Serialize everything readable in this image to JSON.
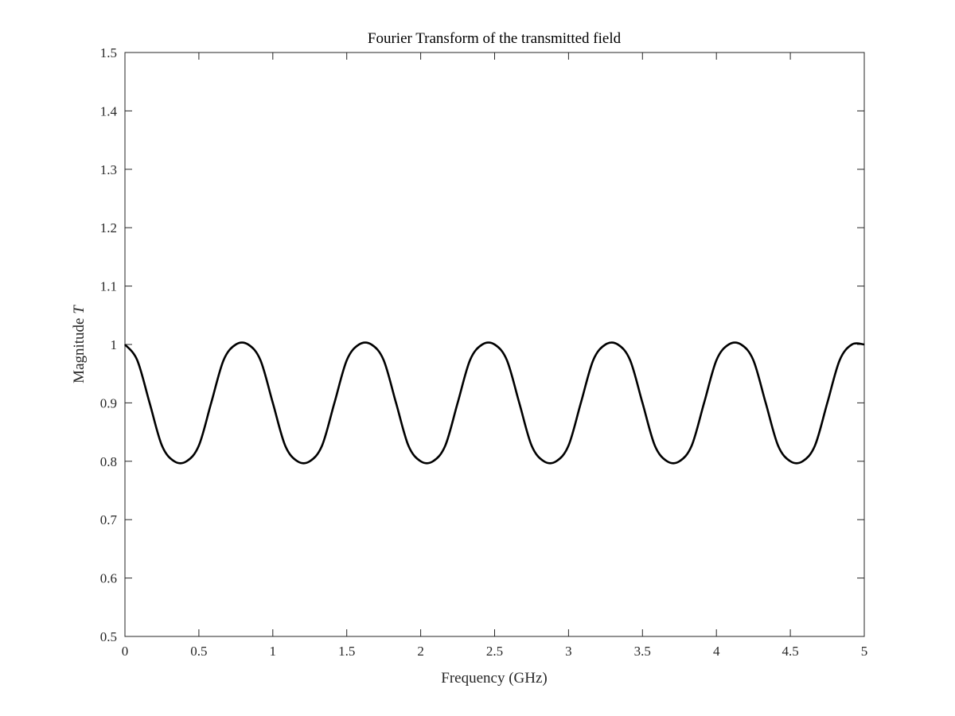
{
  "chart_data": {
    "type": "line",
    "title": "Fourier Transform of the transmitted field",
    "xlabel": "Frequency (GHz)",
    "ylabel_text": "Magnitude ",
    "ylabel_symbol": "T",
    "xlim": [
      0,
      5
    ],
    "ylim": [
      0.5,
      1.5
    ],
    "xticks": [
      "0",
      "0.5",
      "1",
      "1.5",
      "2",
      "2.5",
      "3",
      "3.5",
      "4",
      "4.5",
      "5"
    ],
    "yticks": [
      "0.5",
      "0.6",
      "0.7",
      "0.8",
      "0.9",
      "1",
      "1.1",
      "1.2",
      "1.3",
      "1.4",
      "1.5"
    ],
    "grid": false,
    "legend": "none",
    "series": [
      {
        "color": "#000000",
        "x": [
          0,
          0.0833,
          0.1667,
          0.25,
          0.3333,
          0.4167,
          0.5,
          0.5833,
          0.6667,
          0.75,
          0.8333,
          0.9167,
          1.0,
          1.0833,
          1.1667,
          1.25,
          1.3333,
          1.4167,
          1.5,
          1.5833,
          1.6667,
          1.75,
          1.8333,
          1.9167,
          2.0,
          2.0833,
          2.1667,
          2.25,
          2.3333,
          2.4167,
          2.5,
          2.5833,
          2.6667,
          2.75,
          2.8333,
          2.9167,
          3.0,
          3.0833,
          3.1667,
          3.25,
          3.3333,
          3.4167,
          3.5,
          3.5833,
          3.6667,
          3.75,
          3.8333,
          3.9167,
          4.0,
          4.0833,
          4.1667,
          4.25,
          4.3333,
          4.4167,
          4.5,
          4.5833,
          4.6667,
          4.75,
          4.8333,
          4.9167,
          5.0
        ],
        "y": [
          1.0,
          0.973,
          0.9,
          0.827,
          0.8,
          0.8,
          0.827,
          0.9,
          0.973,
          1.0,
          1.0,
          0.973,
          0.9,
          0.827,
          0.8,
          0.8,
          0.827,
          0.9,
          0.973,
          1.0,
          1.0,
          0.973,
          0.9,
          0.827,
          0.8,
          0.8,
          0.827,
          0.9,
          0.973,
          1.0,
          1.0,
          0.973,
          0.9,
          0.827,
          0.8,
          0.8,
          0.827,
          0.9,
          0.973,
          1.0,
          1.0,
          0.973,
          0.9,
          0.827,
          0.8,
          0.8,
          0.827,
          0.9,
          0.973,
          1.0,
          1.0,
          0.973,
          0.9,
          0.827,
          0.8,
          0.8,
          0.827,
          0.9,
          0.973,
          1.0,
          1.0
        ]
      }
    ]
  }
}
